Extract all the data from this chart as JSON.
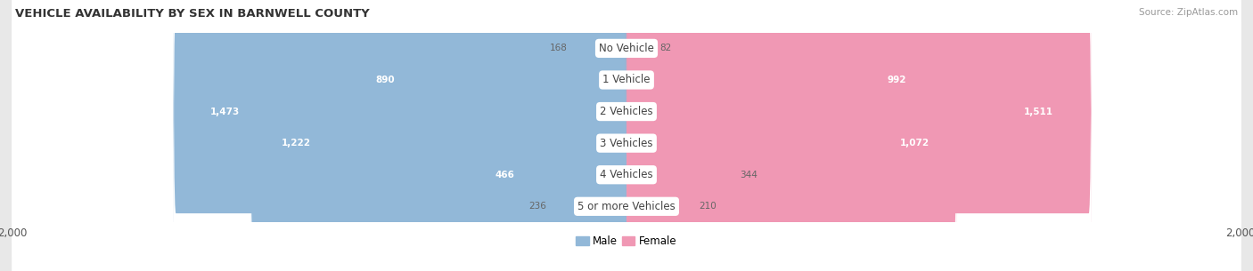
{
  "title": "VEHICLE AVAILABILITY BY SEX IN BARNWELL COUNTY",
  "source": "Source: ZipAtlas.com",
  "categories": [
    "No Vehicle",
    "1 Vehicle",
    "2 Vehicles",
    "3 Vehicles",
    "4 Vehicles",
    "5 or more Vehicles"
  ],
  "male_values": [
    168,
    890,
    1473,
    1222,
    466,
    236
  ],
  "female_values": [
    82,
    992,
    1511,
    1072,
    344,
    210
  ],
  "male_color": "#92b8d8",
  "female_color": "#f098b4",
  "background_color": "#e8e8e8",
  "row_color": "#ffffff",
  "label_text_color": "#444444",
  "outside_label_color": "#666666",
  "inside_label_color": "#ffffff",
  "xlim": 2000,
  "legend_male": "Male",
  "legend_female": "Female",
  "inside_threshold": 350,
  "axis_label_fontsize": 8.5,
  "bar_label_fontsize": 7.5,
  "cat_label_fontsize": 8.5,
  "title_fontsize": 9.5,
  "source_fontsize": 7.5
}
